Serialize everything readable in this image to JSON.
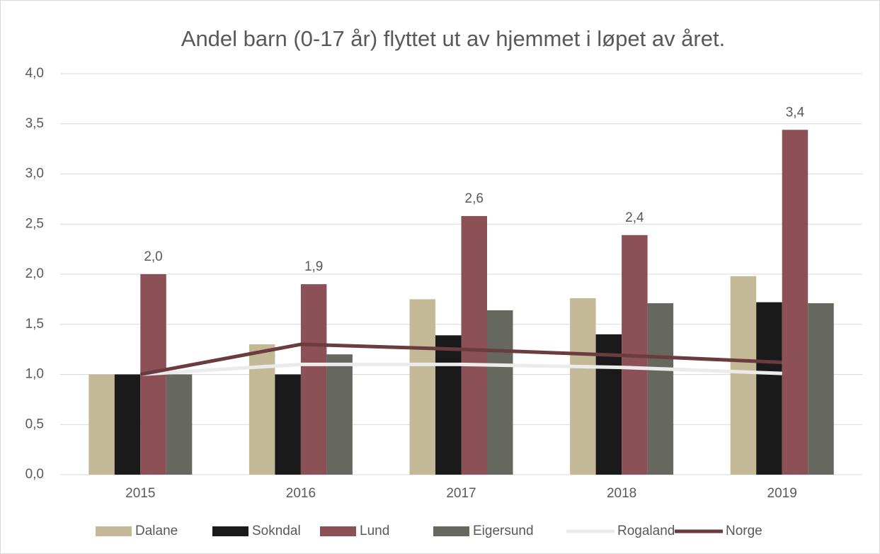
{
  "chart_data": {
    "type": "bar",
    "title": "Andel barn (0-17 år) flyttet ut av hjemmet i løpet av året.",
    "categories": [
      "2015",
      "2016",
      "2017",
      "2018",
      "2019"
    ],
    "series": [
      {
        "name": "Dalane",
        "color": "#c4b996",
        "values": [
          1.0,
          1.3,
          1.75,
          1.76,
          1.98
        ]
      },
      {
        "name": "Sokndal",
        "color": "#1a1a1a",
        "values": [
          1.0,
          1.0,
          1.39,
          1.4,
          1.72
        ]
      },
      {
        "name": "Lund",
        "color": "#8b5157",
        "values": [
          2.0,
          1.9,
          2.58,
          2.39,
          3.44
        ],
        "value_labels": [
          "2,0",
          "1,9",
          "2,6",
          "2,4",
          "3,4"
        ]
      },
      {
        "name": "Eigersund",
        "color": "#666860",
        "values": [
          1.0,
          1.2,
          1.64,
          1.71,
          1.71
        ]
      },
      {
        "name": "Rogaland",
        "color": "#ebebeb",
        "type": "line",
        "values": [
          1.0,
          1.1,
          1.1,
          1.07,
          1.01
        ]
      },
      {
        "name": "Norge",
        "color": "#6b3c3f",
        "type": "line",
        "values": [
          1.0,
          1.3,
          1.25,
          1.19,
          1.12
        ]
      }
    ],
    "ylim": [
      0,
      4
    ],
    "yticks": [
      {
        "value": 0,
        "label": "0,0"
      },
      {
        "value": 0.5,
        "label": "0,5"
      },
      {
        "value": 1,
        "label": "1,0"
      },
      {
        "value": 1.5,
        "label": "1,5"
      },
      {
        "value": 2,
        "label": "2,0"
      },
      {
        "value": 2.5,
        "label": "2,5"
      },
      {
        "value": 3,
        "label": "3,0"
      },
      {
        "value": 3.5,
        "label": "3,5"
      },
      {
        "value": 4,
        "label": "4,0"
      }
    ],
    "grid": true,
    "legend": "bottom"
  }
}
